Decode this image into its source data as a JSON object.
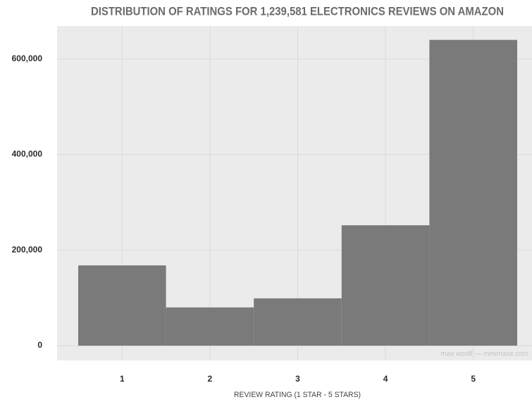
{
  "chart_data": {
    "type": "bar",
    "title": "DISTRIBUTION OF RATINGS FOR 1,239,581 ELECTRONICS REVIEWS ON AMAZON",
    "x_label": "REVIEW RATING (1 STAR - 5 STARS)",
    "caption": "max woolf — minimaxir.com",
    "categories": [
      "1",
      "2",
      "3",
      "4",
      "5"
    ],
    "values": [
      168000,
      80000,
      99000,
      252000,
      640000
    ],
    "color": "#7a7a7a",
    "ylim": [
      -31000,
      669000
    ],
    "yticks": [
      0,
      {
        "value": 200000,
        "label": "200,000"
      },
      {
        "value": 400000,
        "label": "400,000"
      },
      {
        "value": 600000,
        "label": "600,000"
      }
    ],
    "grid": true
  }
}
